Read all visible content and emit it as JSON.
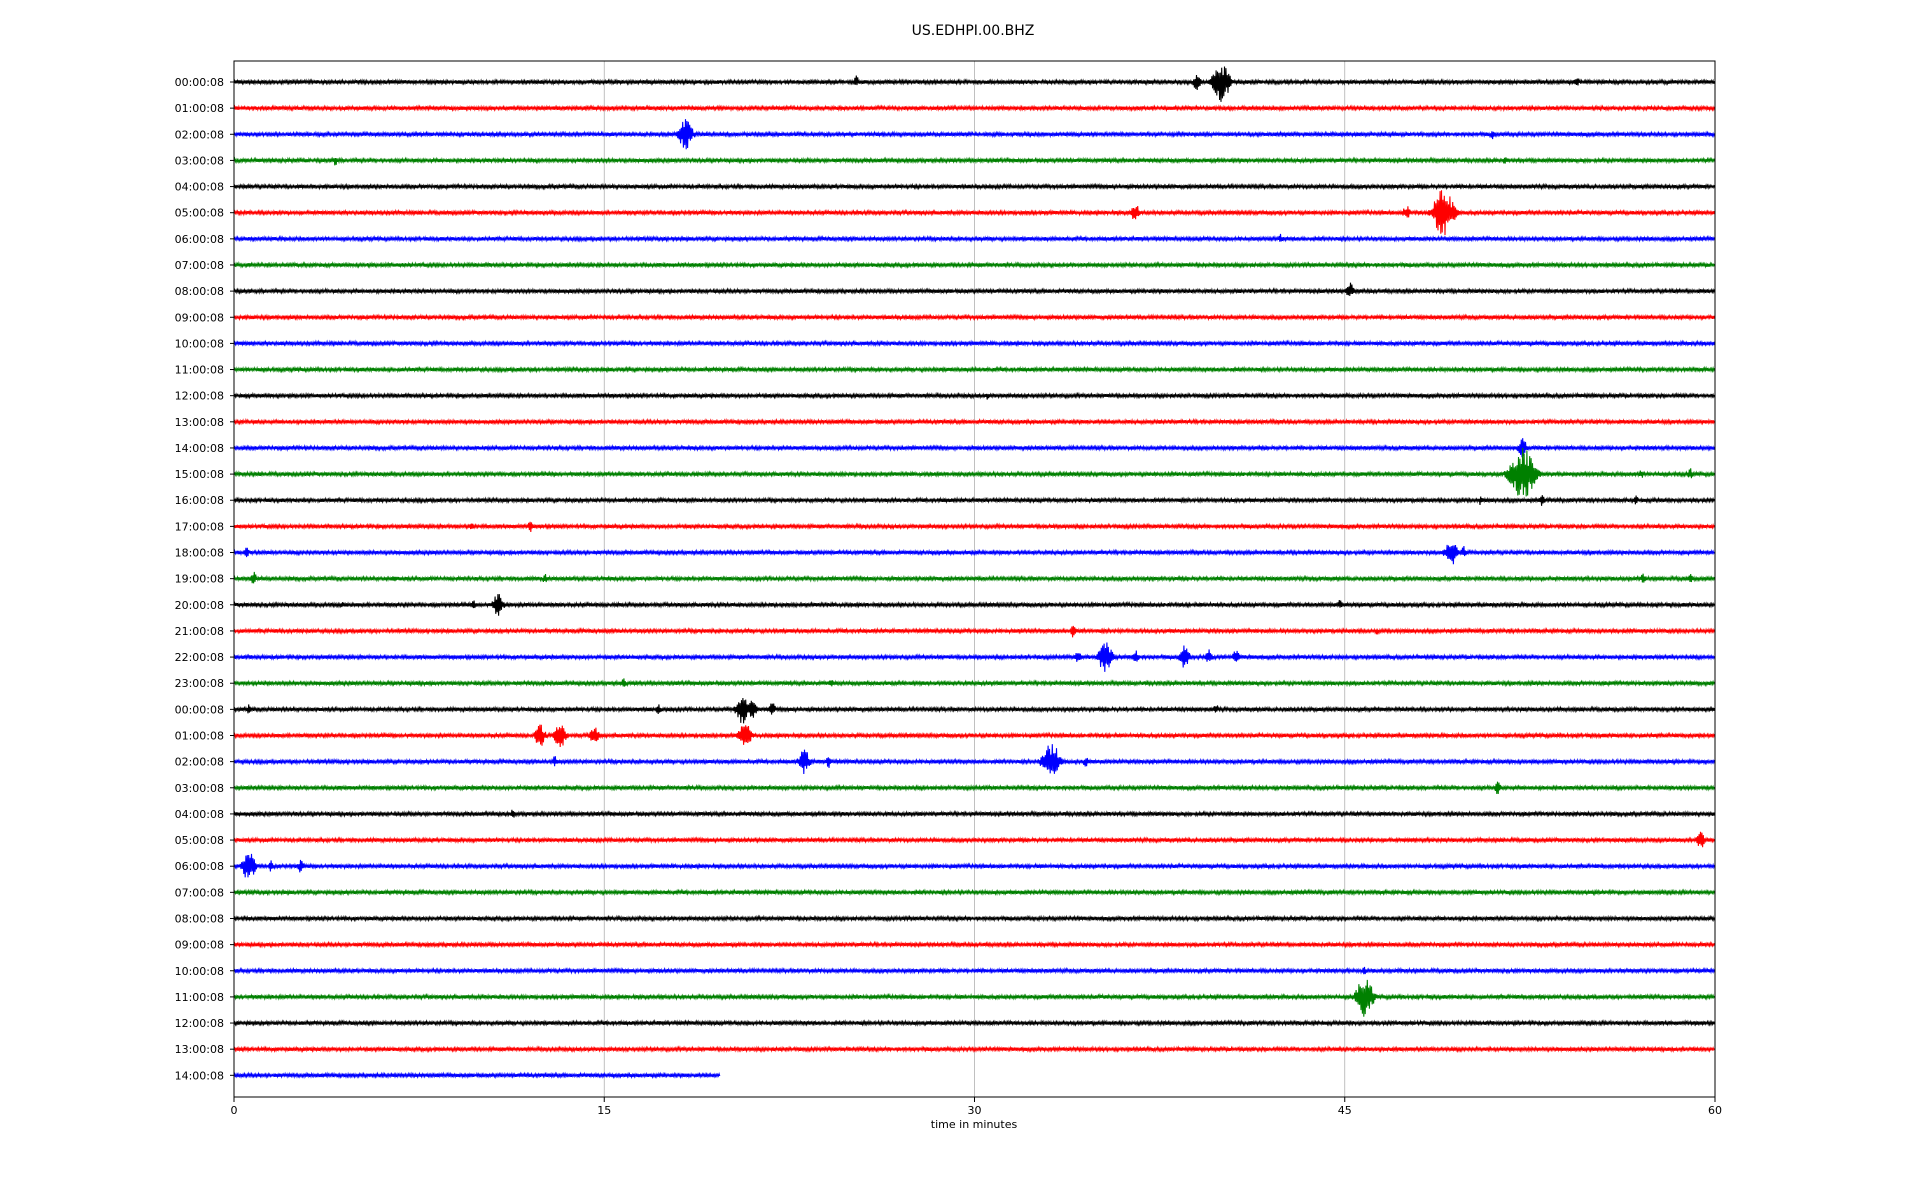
{
  "chart_data": {
    "type": "line",
    "title": "US.EDHPI.00.BHZ",
    "xlabel": "time in minutes",
    "ylabel": "",
    "xlim": [
      0,
      60
    ],
    "x_ticks": [
      "0",
      "15",
      "30",
      "45",
      "60"
    ],
    "x_tick_values": [
      0,
      15,
      30,
      45,
      60
    ],
    "grid": "vertical",
    "colors": [
      "#000000",
      "#ff0000",
      "#0000ff",
      "#008000"
    ],
    "last_row_end_minute": 19.7,
    "rows": [
      {
        "label": "00:00:08",
        "events": [
          {
            "t": 25.2,
            "a": 7
          },
          {
            "t": 39.0,
            "a": 9
          },
          {
            "t": 40.0,
            "a": 20
          },
          {
            "t": 54.4,
            "a": 6
          }
        ]
      },
      {
        "label": "01:00:08",
        "events": []
      },
      {
        "label": "02:00:08",
        "events": [
          {
            "t": 18.3,
            "a": 16
          },
          {
            "t": 51.0,
            "a": 5
          }
        ]
      },
      {
        "label": "03:00:08",
        "events": [
          {
            "t": 4.1,
            "a": 6
          },
          {
            "t": 51.5,
            "a": 4
          }
        ]
      },
      {
        "label": "04:00:08",
        "events": []
      },
      {
        "label": "05:00:08",
        "events": [
          {
            "t": 36.5,
            "a": 10
          },
          {
            "t": 47.5,
            "a": 8
          },
          {
            "t": 49.0,
            "a": 24
          }
        ]
      },
      {
        "label": "06:00:08",
        "events": [
          {
            "t": 42.4,
            "a": 5
          }
        ]
      },
      {
        "label": "07:00:08",
        "events": []
      },
      {
        "label": "08:00:08",
        "events": [
          {
            "t": 45.2,
            "a": 9
          }
        ]
      },
      {
        "label": "09:00:08",
        "events": []
      },
      {
        "label": "10:00:08",
        "events": []
      },
      {
        "label": "11:00:08",
        "events": []
      },
      {
        "label": "12:00:08",
        "events": [
          {
            "t": 30.5,
            "a": 4
          }
        ]
      },
      {
        "label": "13:00:08",
        "events": []
      },
      {
        "label": "14:00:08",
        "events": [
          {
            "t": 52.2,
            "a": 10
          }
        ]
      },
      {
        "label": "15:00:08",
        "events": [
          {
            "t": 52.2,
            "a": 28
          },
          {
            "t": 57.0,
            "a": 5
          },
          {
            "t": 59.0,
            "a": 6
          }
        ]
      },
      {
        "label": "16:00:08",
        "events": [
          {
            "t": 50.5,
            "a": 5
          },
          {
            "t": 53.0,
            "a": 6
          },
          {
            "t": 56.8,
            "a": 5
          }
        ]
      },
      {
        "label": "17:00:08",
        "events": [
          {
            "t": 9.6,
            "a": 5
          },
          {
            "t": 12.0,
            "a": 6
          }
        ]
      },
      {
        "label": "18:00:08",
        "events": [
          {
            "t": 0.5,
            "a": 6
          },
          {
            "t": 49.3,
            "a": 14
          },
          {
            "t": 49.8,
            "a": 7
          }
        ]
      },
      {
        "label": "19:00:08",
        "events": [
          {
            "t": 0.8,
            "a": 7
          },
          {
            "t": 6.5,
            "a": 4
          },
          {
            "t": 12.6,
            "a": 5
          },
          {
            "t": 57.1,
            "a": 6
          },
          {
            "t": 59.0,
            "a": 5
          }
        ]
      },
      {
        "label": "20:00:08",
        "events": [
          {
            "t": 4.4,
            "a": 4
          },
          {
            "t": 9.7,
            "a": 5
          },
          {
            "t": 10.7,
            "a": 12
          },
          {
            "t": 44.8,
            "a": 5
          }
        ]
      },
      {
        "label": "21:00:08",
        "events": [
          {
            "t": 34.0,
            "a": 7
          },
          {
            "t": 46.3,
            "a": 4
          }
        ]
      },
      {
        "label": "22:00:08",
        "events": [
          {
            "t": 34.2,
            "a": 7
          },
          {
            "t": 35.3,
            "a": 16
          },
          {
            "t": 36.5,
            "a": 8
          },
          {
            "t": 38.5,
            "a": 12
          },
          {
            "t": 39.5,
            "a": 8
          },
          {
            "t": 40.6,
            "a": 8
          }
        ]
      },
      {
        "label": "23:00:08",
        "events": [
          {
            "t": 15.8,
            "a": 6
          },
          {
            "t": 24.2,
            "a": 4
          }
        ]
      },
      {
        "label": "00:00:08",
        "events": [
          {
            "t": 0.6,
            "a": 5
          },
          {
            "t": 17.2,
            "a": 6
          },
          {
            "t": 20.6,
            "a": 15
          },
          {
            "t": 21.0,
            "a": 10
          },
          {
            "t": 21.8,
            "a": 8
          },
          {
            "t": 39.8,
            "a": 5
          }
        ]
      },
      {
        "label": "01:00:08",
        "events": [
          {
            "t": 12.4,
            "a": 12
          },
          {
            "t": 13.2,
            "a": 14
          },
          {
            "t": 14.6,
            "a": 10
          },
          {
            "t": 20.7,
            "a": 14
          }
        ]
      },
      {
        "label": "02:00:08",
        "events": [
          {
            "t": 13.0,
            "a": 6
          },
          {
            "t": 23.1,
            "a": 13
          },
          {
            "t": 24.1,
            "a": 7
          },
          {
            "t": 33.1,
            "a": 20
          },
          {
            "t": 34.5,
            "a": 6
          }
        ]
      },
      {
        "label": "03:00:08",
        "events": [
          {
            "t": 51.2,
            "a": 7
          }
        ]
      },
      {
        "label": "04:00:08",
        "events": [
          {
            "t": 11.3,
            "a": 5
          }
        ]
      },
      {
        "label": "05:00:08",
        "events": [
          {
            "t": 59.4,
            "a": 10
          }
        ]
      },
      {
        "label": "06:00:08",
        "events": [
          {
            "t": 0.6,
            "a": 16
          },
          {
            "t": 1.5,
            "a": 6
          },
          {
            "t": 2.7,
            "a": 7
          }
        ]
      },
      {
        "label": "07:00:08",
        "events": []
      },
      {
        "label": "08:00:08",
        "events": []
      },
      {
        "label": "09:00:08",
        "events": []
      },
      {
        "label": "10:00:08",
        "events": [
          {
            "t": 45.8,
            "a": 4
          }
        ]
      },
      {
        "label": "11:00:08",
        "events": [
          {
            "t": 45.8,
            "a": 20
          }
        ]
      },
      {
        "label": "12:00:08",
        "events": []
      },
      {
        "label": "13:00:08",
        "events": []
      },
      {
        "label": "14:00:08",
        "events": []
      }
    ]
  }
}
